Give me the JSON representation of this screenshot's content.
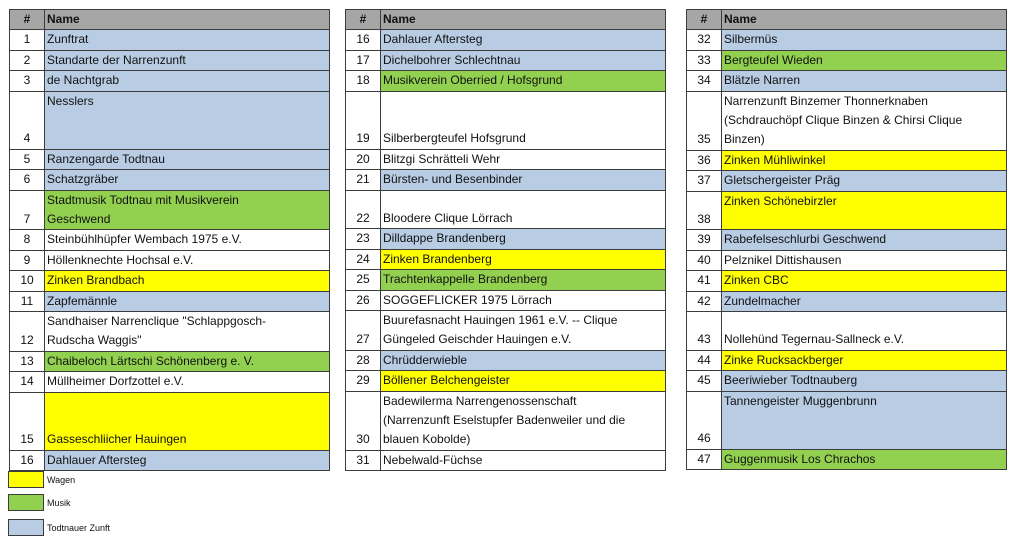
{
  "header": {
    "num": "#",
    "name": "Name"
  },
  "colors": {
    "z": "#b8cce4",
    "m": "#92d050",
    "w": "#ffff00",
    "header": "#a6a6a6"
  },
  "tables": [
    {
      "rows": [
        {
          "num": "1",
          "name": "Zunftrat",
          "cat": "z",
          "units": 1
        },
        {
          "num": "2",
          "name": "Standarte der Narrenzunft",
          "cat": "z",
          "units": 1
        },
        {
          "num": "3",
          "name": "de Nachtgrab",
          "cat": "z",
          "units": 1
        },
        {
          "num": "4",
          "name": "Nesslers",
          "cat": "z",
          "units": 3
        },
        {
          "num": "5",
          "name": "Ranzengarde Todtnau",
          "cat": "z",
          "units": 1
        },
        {
          "num": "6",
          "name": "Schatzgräber",
          "cat": "z",
          "units": 1
        },
        {
          "num": "7",
          "name": "Stadtmusik Todtnau mit Musikverein\nGeschwend",
          "cat": "m",
          "units": 2
        },
        {
          "num": "8",
          "name": "Steinbühlhüpfer Wembach 1975 e.V.",
          "cat": "n",
          "units": 1
        },
        {
          "num": "9",
          "name": "Höllenknechte Hochsal e.V.",
          "cat": "n",
          "units": 1
        },
        {
          "num": "10",
          "name": "Zinken Brandbach",
          "cat": "w",
          "units": 1
        },
        {
          "num": "11",
          "name": "Zapfemännle",
          "cat": "z",
          "units": 1
        },
        {
          "num": "12",
          "name": "Sandhaiser Narrenclique \"Schlappgosch-\nRudscha Waggis\"",
          "cat": "n",
          "units": 2
        },
        {
          "num": "13",
          "name": "Chaibeloch Lärtschi Schönenberg e. V.",
          "cat": "m",
          "units": 1
        },
        {
          "num": "14",
          "name": "Müllheimer Dorfzottel e.V.",
          "cat": "n",
          "units": 1
        },
        {
          "num": "15",
          "name": "Gasseschliicher Hauingen",
          "cat": "w",
          "units": 3
        },
        {
          "num": "16",
          "name": "Dahlauer Aftersteg",
          "cat": "z",
          "units": 1
        }
      ]
    },
    {
      "rows": [
        {
          "num": "16",
          "name": "Dahlauer Aftersteg",
          "cat": "z",
          "units": 1
        },
        {
          "num": "17",
          "name": "Dichelbohrer Schlechtnau",
          "cat": "z",
          "units": 1
        },
        {
          "num": "18",
          "name": "Musikverein Oberried / Hofsgrund",
          "cat": "m",
          "units": 1
        },
        {
          "num": "19",
          "name": "Silberbergteufel Hofsgrund",
          "cat": "n",
          "units": 3
        },
        {
          "num": "20",
          "name": "Blitzgi Schrätteli Wehr",
          "cat": "n",
          "units": 1
        },
        {
          "num": "21",
          "name": "Bürsten- und Besenbinder",
          "cat": "z",
          "units": 1
        },
        {
          "num": "22",
          "name": "Bloodere Clique Lörrach",
          "cat": "n",
          "units": 2
        },
        {
          "num": "23",
          "name": "Dilldappe Brandenberg",
          "cat": "z",
          "units": 1
        },
        {
          "num": "24",
          "name": "Zinken Brandenberg",
          "cat": "w",
          "units": 1
        },
        {
          "num": "25",
          "name": "Trachtenkappelle Brandenberg",
          "cat": "m",
          "units": 1
        },
        {
          "num": "26",
          "name": "SOGGEFLICKER 1975 Lörrach",
          "cat": "n",
          "units": 1
        },
        {
          "num": "27",
          "name": "Buurefasnacht Hauingen 1961 e.V. -- Clique\nGüngeled Geischder Hauingen e.V.",
          "cat": "n",
          "units": 2
        },
        {
          "num": "28",
          "name": "Chrüdderwieble",
          "cat": "z",
          "units": 1
        },
        {
          "num": "29",
          "name": "Böllener Belchengeister",
          "cat": "w",
          "units": 1
        },
        {
          "num": "30",
          "name": "Badewilerma Narrengenossenschaft\n(Narrenzunft Eselstupfer Badenweiler und die\nblauen Kobolde)",
          "cat": "n",
          "units": 3
        },
        {
          "num": "31",
          "name": "Nebelwald-Füchse",
          "cat": "n",
          "units": 1
        }
      ]
    },
    {
      "rows": [
        {
          "num": "32",
          "name": "Silbermüs",
          "cat": "z",
          "units": 1
        },
        {
          "num": "33",
          "name": "Bergteufel Wieden",
          "cat": "m",
          "units": 1
        },
        {
          "num": "34",
          "name": "Blätzle Narren",
          "cat": "z",
          "units": 1
        },
        {
          "num": "35",
          "name": "Narrenzunft Binzemer Thonnerknaben\n(Schdrauchöpf Clique Binzen & Chirsi Clique\nBinzen)",
          "cat": "n",
          "units": 3
        },
        {
          "num": "36",
          "name": "Zinken Mühliwinkel",
          "cat": "w",
          "units": 1
        },
        {
          "num": "37",
          "name": "Gletschergeister Präg",
          "cat": "z",
          "units": 1
        },
        {
          "num": "38",
          "name": "Zinken Schönebirzler",
          "cat": "w",
          "units": 2
        },
        {
          "num": "39",
          "name": "Rabefelseschlurbi Geschwend",
          "cat": "z",
          "units": 1
        },
        {
          "num": "40",
          "name": "Pelznikel Dittishausen",
          "cat": "n",
          "units": 1
        },
        {
          "num": "41",
          "name": "Zinken CBC",
          "cat": "w",
          "units": 1
        },
        {
          "num": "42",
          "name": "Zundelmacher",
          "cat": "z",
          "units": 1
        },
        {
          "num": "43",
          "name": "Nollehünd Tegernau-Sallneck e.V.",
          "cat": "n",
          "units": 2
        },
        {
          "num": "44",
          "name": "Zinke Rucksackberger",
          "cat": "w",
          "units": 1
        },
        {
          "num": "45",
          "name": "Beeriwieber Todtnauberg",
          "cat": "z",
          "units": 1
        },
        {
          "num": "46",
          "name": "Tannengeister Muggenbrunn",
          "cat": "z",
          "units": 3
        },
        {
          "num": "47",
          "name": "Guggenmusik Los Chrachos",
          "cat": "m",
          "units": 1
        }
      ]
    }
  ],
  "legend": [
    {
      "label": "Wagen",
      "cat": "w"
    },
    {
      "label": "Musik",
      "cat": "m"
    },
    {
      "label": "Todtnauer Zunft",
      "cat": "z"
    }
  ]
}
